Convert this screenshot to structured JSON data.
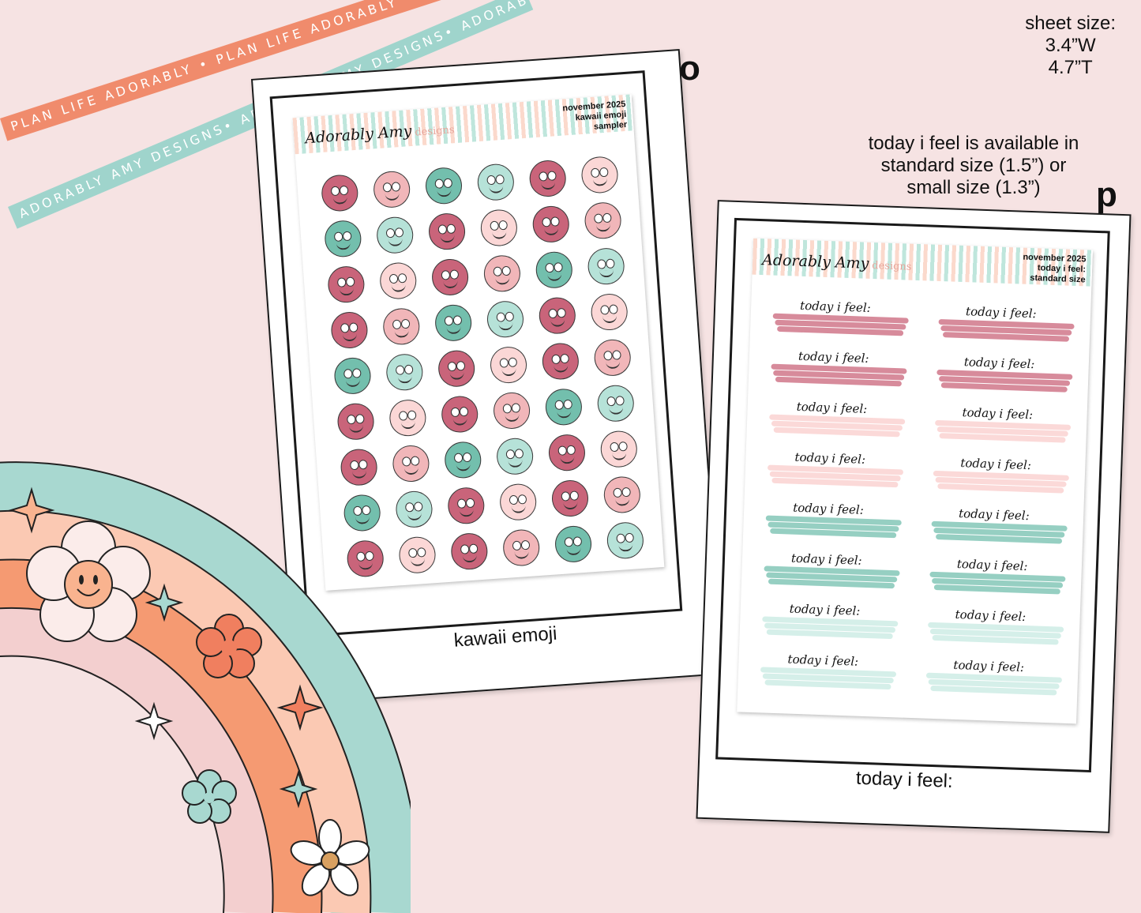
{
  "ribbons": {
    "orange_text": "PLAN LIFE ADORABLY • PLAN LIFE ADORABLY • PLAN LIFE ADORABLY •",
    "teal_text": "ADORABLY AMY DESIGNS• ADORABLY AMY DESIGNS• ADORABLY AMY DESIGNS•"
  },
  "sheet_size": {
    "line1": "sheet size:",
    "line2": "3.4”W",
    "line3": "4.7”T"
  },
  "availability": {
    "line1": "today i feel is available in",
    "line2": "standard size (1.5”) or",
    "line3": "small size (1.3”)"
  },
  "cards": [
    {
      "letter": "o",
      "caption": "kawaii emoji",
      "brand": "Adorably Amy",
      "brand_sub": "designs",
      "title_lines": [
        "november 2025",
        "kawaii emoji",
        "sampler"
      ]
    },
    {
      "letter": "p",
      "caption": "today i feel:",
      "brand": "Adorably Amy",
      "brand_sub": "designs",
      "title_lines": [
        "november 2025",
        "today i feel:",
        "standard size"
      ],
      "sticker_label": "today i feel:"
    }
  ],
  "colors": {
    "background": "#f6e3e3",
    "dark_pink": "#c9647a",
    "pink": "#f1b6b9",
    "light_pink": "#fbd7d6",
    "teal": "#73bfad",
    "light_teal": "#b6e2d8",
    "pale_teal": "#d3eee8",
    "ribbon_orange": "#f08b6c",
    "ribbon_teal": "#9fd4cc"
  }
}
